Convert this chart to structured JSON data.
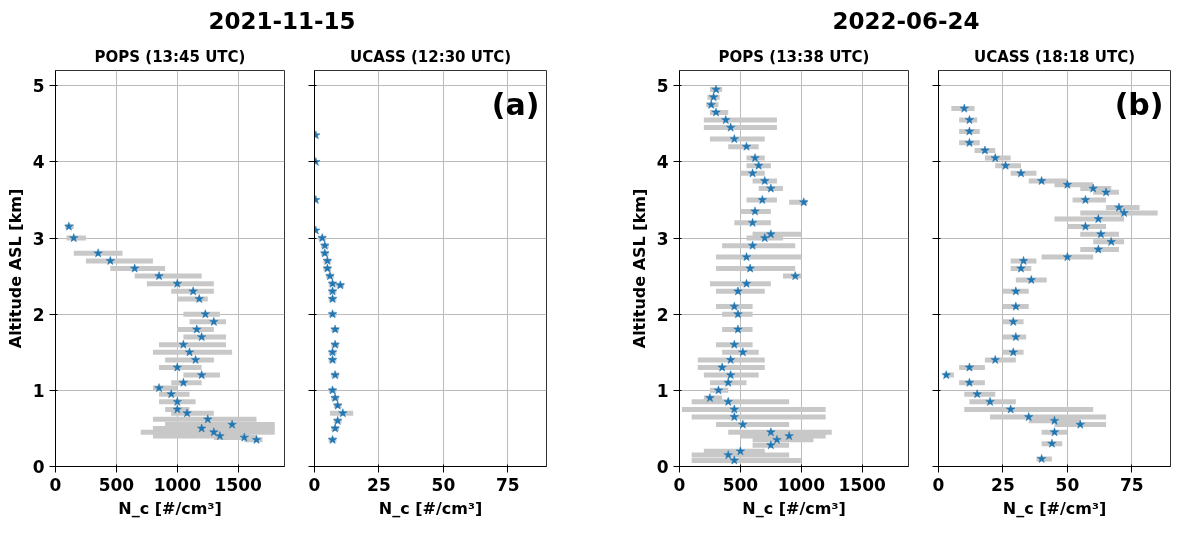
{
  "chart_data": [
    {
      "type": "scatter",
      "subtitle": "2021-11-15",
      "title": "POPS (13:45 UTC)",
      "xlabel": "N_c [#/cm³]",
      "ylabel": "Altitude ASL [km]",
      "xlim": [
        0,
        1880
      ],
      "xticks": [
        0,
        500,
        1000,
        1500
      ],
      "ylim": [
        0,
        5.2
      ],
      "yticks": [
        0,
        1,
        2,
        3,
        4,
        5
      ],
      "grid": true,
      "marker": "star",
      "series": [
        {
          "color": "#1f77b4",
          "x": [
            110,
            150,
            350,
            450,
            650,
            850,
            1000,
            1130,
            1180,
            1230,
            1300,
            1160,
            1200,
            1050,
            1100,
            1150,
            1000,
            1200,
            1050,
            850,
            950,
            1000,
            1000,
            1080,
            1250,
            1450,
            1200,
            1300,
            1350,
            1550,
            1650
          ],
          "values": [
            3.15,
            3.0,
            2.8,
            2.7,
            2.6,
            2.5,
            2.4,
            2.3,
            2.2,
            2.0,
            1.9,
            1.8,
            1.7,
            1.6,
            1.5,
            1.4,
            1.3,
            1.2,
            1.1,
            1.03,
            0.95,
            0.85,
            0.75,
            0.7,
            0.62,
            0.55,
            0.5,
            0.45,
            0.4,
            0.38,
            0.35
          ],
          "xerrors": [
            [
              80,
              150
            ],
            [
              90,
              250
            ],
            [
              150,
              550
            ],
            [
              250,
              800
            ],
            [
              450,
              900
            ],
            [
              650,
              1200
            ],
            [
              750,
              1300
            ],
            [
              950,
              1300
            ],
            [
              1000,
              1250
            ],
            [
              1050,
              1350
            ],
            [
              1100,
              1400
            ],
            [
              1000,
              1300
            ],
            [
              1050,
              1400
            ],
            [
              850,
              1400
            ],
            [
              800,
              1450
            ],
            [
              900,
              1300
            ],
            [
              850,
              1200
            ],
            [
              1050,
              1350
            ],
            [
              950,
              1200
            ],
            [
              800,
              1000
            ],
            [
              850,
              1100
            ],
            [
              850,
              1150
            ],
            [
              900,
              1100
            ],
            [
              950,
              1300
            ],
            [
              800,
              1650
            ],
            [
              900,
              1800
            ],
            [
              800,
              1800
            ],
            [
              700,
              1800
            ],
            [
              800,
              1600
            ],
            [
              1300,
              1650
            ],
            [
              1550,
              1700
            ]
          ]
        }
      ]
    },
    {
      "type": "scatter",
      "title": "UCASS (12:30 UTC)",
      "xlabel": "N_c [#/cm³]",
      "annotations": [
        "(a)"
      ],
      "xlim": [
        0,
        90
      ],
      "xticks": [
        0,
        25,
        50,
        75
      ],
      "ylim": [
        0,
        5.2
      ],
      "yticks": [
        0,
        1,
        2,
        3,
        4,
        5
      ],
      "tick_labels": "x",
      "grid": true,
      "marker": "star",
      "series": [
        {
          "color": "#1f77b4",
          "x": [
            0.5,
            0.5,
            0.5,
            0.5,
            3,
            4,
            4,
            5,
            5,
            6,
            7,
            10,
            7,
            7,
            7,
            8,
            8,
            7,
            7,
            8,
            7,
            8,
            9,
            11,
            9,
            8,
            7
          ],
          "values": [
            4.35,
            4.0,
            3.5,
            3.1,
            3.0,
            2.9,
            2.8,
            2.7,
            2.6,
            2.5,
            2.4,
            2.38,
            2.3,
            2.2,
            2.0,
            1.8,
            1.6,
            1.5,
            1.4,
            1.2,
            1.0,
            0.9,
            0.8,
            0.7,
            0.6,
            0.5,
            0.35
          ],
          "xerrors": [
            null,
            null,
            null,
            null,
            [
              1.5,
              4.5
            ],
            [
              2.5,
              5.5
            ],
            [
              2.5,
              5.5
            ],
            [
              3.5,
              6.5
            ],
            [
              3.5,
              6.5
            ],
            [
              4.5,
              7.5
            ],
            [
              5.5,
              8.5
            ],
            [
              8.5,
              11.5
            ],
            [
              5.5,
              8.5
            ],
            [
              5.5,
              8.5
            ],
            [
              5.5,
              8.5
            ],
            [
              6.5,
              9.5
            ],
            [
              6.5,
              9.5
            ],
            [
              5.5,
              8.5
            ],
            [
              5.5,
              8.5
            ],
            [
              6.5,
              9.5
            ],
            [
              5.5,
              8.5
            ],
            [
              6.5,
              9.5
            ],
            [
              7.5,
              10.5
            ],
            [
              6,
              15
            ],
            [
              7.5,
              10.5
            ],
            [
              6.5,
              9.5
            ],
            [
              5.5,
              8.5
            ]
          ]
        }
      ]
    },
    {
      "type": "scatter",
      "subtitle": "2022-06-24",
      "title": "POPS (13:38 UTC)",
      "xlabel": "N_c [#/cm³]",
      "ylabel": "Altitude ASL [km]",
      "xlim": [
        0,
        1880
      ],
      "xticks": [
        0,
        500,
        1000,
        1500
      ],
      "ylim": [
        0,
        5.2
      ],
      "yticks": [
        0,
        1,
        2,
        3,
        4,
        5
      ],
      "grid": true,
      "marker": "star",
      "series": [
        {
          "color": "#1f77b4",
          "x": [
            300,
            280,
            260,
            300,
            380,
            420,
            450,
            550,
            620,
            650,
            600,
            700,
            750,
            680,
            1020,
            620,
            600,
            750,
            700,
            600,
            550,
            580,
            950,
            550,
            480,
            450,
            480,
            480,
            450,
            520,
            420,
            350,
            420,
            400,
            320,
            250,
            400,
            450,
            450,
            520,
            750,
            900,
            800,
            750,
            500,
            400,
            450
          ],
          "values": [
            4.95,
            4.85,
            4.75,
            4.65,
            4.55,
            4.45,
            4.3,
            4.2,
            4.05,
            3.95,
            3.85,
            3.75,
            3.65,
            3.5,
            3.47,
            3.35,
            3.2,
            3.05,
            3.0,
            2.9,
            2.75,
            2.6,
            2.5,
            2.4,
            2.3,
            2.1,
            2.0,
            1.8,
            1.6,
            1.5,
            1.4,
            1.3,
            1.2,
            1.1,
            1.0,
            0.9,
            0.85,
            0.75,
            0.65,
            0.55,
            0.45,
            0.4,
            0.35,
            0.28,
            0.2,
            0.15,
            0.08
          ],
          "xerrors": [
            [
              250,
              350
            ],
            [
              230,
              330
            ],
            [
              220,
              320
            ],
            [
              250,
              400
            ],
            [
              200,
              800
            ],
            [
              200,
              800
            ],
            [
              250,
              700
            ],
            [
              400,
              650
            ],
            [
              550,
              700
            ],
            [
              550,
              750
            ],
            [
              500,
              700
            ],
            [
              600,
              800
            ],
            [
              650,
              850
            ],
            [
              550,
              800
            ],
            [
              900,
              1050
            ],
            [
              500,
              750
            ],
            [
              450,
              750
            ],
            [
              600,
              1000
            ],
            [
              550,
              850
            ],
            [
              350,
              950
            ],
            [
              300,
              1000
            ],
            [
              300,
              950
            ],
            [
              850,
              1000
            ],
            [
              250,
              750
            ],
            [
              300,
              700
            ],
            [
              300,
              600
            ],
            [
              350,
              600
            ],
            [
              350,
              600
            ],
            [
              300,
              600
            ],
            [
              350,
              650
            ],
            [
              150,
              700
            ],
            [
              150,
              700
            ],
            [
              200,
              650
            ],
            [
              250,
              550
            ],
            [
              250,
              400
            ],
            [
              200,
              350
            ],
            [
              100,
              900
            ],
            [
              20,
              1200
            ],
            [
              100,
              1200
            ],
            [
              300,
              900
            ],
            [
              400,
              1250
            ],
            [
              500,
              1200
            ],
            [
              600,
              1100
            ],
            [
              600,
              900
            ],
            [
              200,
              700
            ],
            [
              100,
              900
            ],
            [
              100,
              1000
            ]
          ]
        }
      ]
    },
    {
      "type": "scatter",
      "title": "UCASS (18:18 UTC)",
      "xlabel": "N_c [#/cm³]",
      "annotations": [
        "(b)"
      ],
      "xlim": [
        0,
        90
      ],
      "xticks": [
        0,
        25,
        50,
        75
      ],
      "ylim": [
        0,
        5.2
      ],
      "yticks": [
        0,
        1,
        2,
        3,
        4,
        5
      ],
      "tick_labels": "x",
      "grid": true,
      "marker": "star",
      "series": [
        {
          "color": "#1f77b4",
          "x": [
            10,
            12,
            12,
            12,
            18,
            22,
            26,
            32,
            40,
            50,
            60,
            65,
            57,
            70,
            72,
            62,
            57,
            63,
            67,
            62,
            50,
            33,
            32,
            36,
            30,
            30,
            29,
            30,
            29,
            22,
            12,
            3,
            12,
            15,
            20,
            28,
            35,
            45,
            55,
            45,
            44,
            40
          ],
          "values": [
            4.7,
            4.55,
            4.4,
            4.25,
            4.15,
            4.05,
            3.95,
            3.85,
            3.75,
            3.7,
            3.65,
            3.6,
            3.5,
            3.4,
            3.33,
            3.25,
            3.15,
            3.05,
            2.95,
            2.85,
            2.75,
            2.7,
            2.6,
            2.45,
            2.3,
            2.1,
            1.9,
            1.7,
            1.5,
            1.4,
            1.3,
            1.2,
            1.1,
            0.95,
            0.85,
            0.75,
            0.65,
            0.6,
            0.55,
            0.45,
            0.3,
            0.1
          ],
          "xerrors": [
            [
              5,
              14
            ],
            [
              8,
              15
            ],
            [
              8,
              16
            ],
            [
              8,
              16
            ],
            [
              14,
              22
            ],
            [
              18,
              28
            ],
            [
              22,
              32
            ],
            [
              28,
              38
            ],
            [
              35,
              50
            ],
            [
              45,
              60
            ],
            [
              55,
              67
            ],
            [
              60,
              70
            ],
            [
              52,
              65
            ],
            [
              65,
              78
            ],
            [
              55,
              85
            ],
            [
              45,
              72
            ],
            [
              50,
              65
            ],
            [
              55,
              70
            ],
            [
              60,
              72
            ],
            [
              55,
              70
            ],
            [
              40,
              60
            ],
            [
              28,
              38
            ],
            [
              28,
              36
            ],
            [
              30,
              42
            ],
            [
              25,
              35
            ],
            [
              25,
              35
            ],
            [
              25,
              33
            ],
            [
              25,
              34
            ],
            [
              25,
              33
            ],
            [
              18,
              30
            ],
            [
              8,
              18
            ],
            [
              2,
              6
            ],
            [
              8,
              18
            ],
            [
              10,
              22
            ],
            [
              12,
              30
            ],
            [
              10,
              60
            ],
            [
              20,
              65
            ],
            [
              35,
              55
            ],
            [
              45,
              65
            ],
            [
              40,
              50
            ],
            [
              40,
              48
            ],
            [
              38,
              44
            ]
          ]
        }
      ]
    }
  ]
}
